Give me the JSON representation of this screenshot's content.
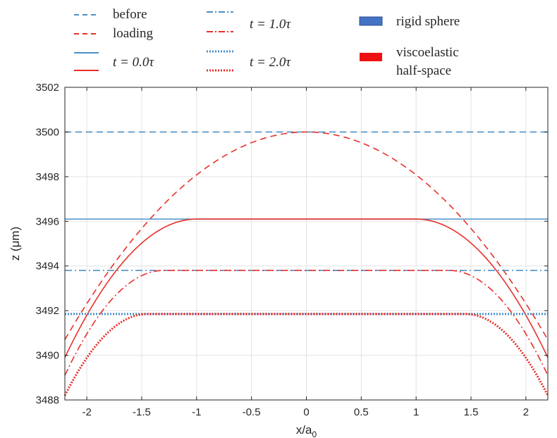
{
  "chart_data": {
    "type": "line",
    "xlabel": "x/a",
    "xlabel_sub": "0",
    "ylabel": "z (μm)",
    "xlim": [
      -2.2,
      2.2
    ],
    "ylim": [
      3488,
      3502
    ],
    "xticks": [
      "-2",
      "-1.5",
      "-1",
      "-0.5",
      "0",
      "0.5",
      "1",
      "1.5",
      "2"
    ],
    "yticks": [
      "3488",
      "3490",
      "3492",
      "3494",
      "3496",
      "3498",
      "3500",
      "3502"
    ],
    "grid": true,
    "legend_placement": "top",
    "legend": {
      "before": "before",
      "loading": "loading",
      "t0": "t = 0.0τ",
      "t1": "t = 1.0τ",
      "t2": "t = 2.0τ",
      "rigid": "rigid sphere",
      "visco_line1": "viscoelastic",
      "visco_line2": "half-space"
    },
    "colors": {
      "blue": "#4a90c8",
      "red": "#e8302a",
      "rigid_patch": "#4472c4",
      "visco_patch": "#ee1111"
    },
    "series": [
      {
        "key": "before",
        "kind": "flat",
        "color": "blue",
        "dash": "dashed",
        "z": 3500.0
      },
      {
        "key": "loading",
        "kind": "curve",
        "color": "red",
        "dash": "dashed",
        "z0": 3500.0,
        "plateau_half_width": 0,
        "x": [
          -2.2,
          -1.5,
          -1,
          0,
          1,
          1.5,
          2.2
        ],
        "y": [
          3490.7,
          3495.8,
          3498.05,
          3500.0,
          3498.05,
          3495.8,
          3490.7
        ]
      },
      {
        "key": "t0_rigid",
        "kind": "flat",
        "color": "blue",
        "dash": "solid",
        "z": 3496.1
      },
      {
        "key": "t0_visco",
        "kind": "curve",
        "color": "red",
        "dash": "solid",
        "z0": 3496.1,
        "plateau_half_width": 1.0,
        "x": [
          -2.2,
          -1.5,
          -1,
          1,
          1.5,
          2.2
        ],
        "y": [
          3489.9,
          3494.4,
          3496.1,
          3496.1,
          3494.4,
          3489.9
        ]
      },
      {
        "key": "t1_rigid",
        "kind": "flat",
        "color": "blue",
        "dash": "dashdot",
        "z": 3493.8
      },
      {
        "key": "t1_visco",
        "kind": "curve",
        "color": "red",
        "dash": "dashdot",
        "z0": 3493.8,
        "plateau_half_width": 1.3,
        "x": [
          -2.2,
          -1.3,
          1.3,
          2.2
        ],
        "y": [
          3489.1,
          3493.8,
          3493.8,
          3489.1
        ]
      },
      {
        "key": "t2_rigid",
        "kind": "flat",
        "color": "blue",
        "dash": "dotted",
        "z": 3491.85
      },
      {
        "key": "t2_visco",
        "kind": "curve",
        "color": "red",
        "dash": "dotted",
        "z0": 3491.85,
        "plateau_half_width": 1.45,
        "x": [
          -2.2,
          -1.45,
          1.45,
          2.2
        ],
        "y": [
          3488.2,
          3491.85,
          3491.85,
          3488.2
        ]
      }
    ]
  }
}
